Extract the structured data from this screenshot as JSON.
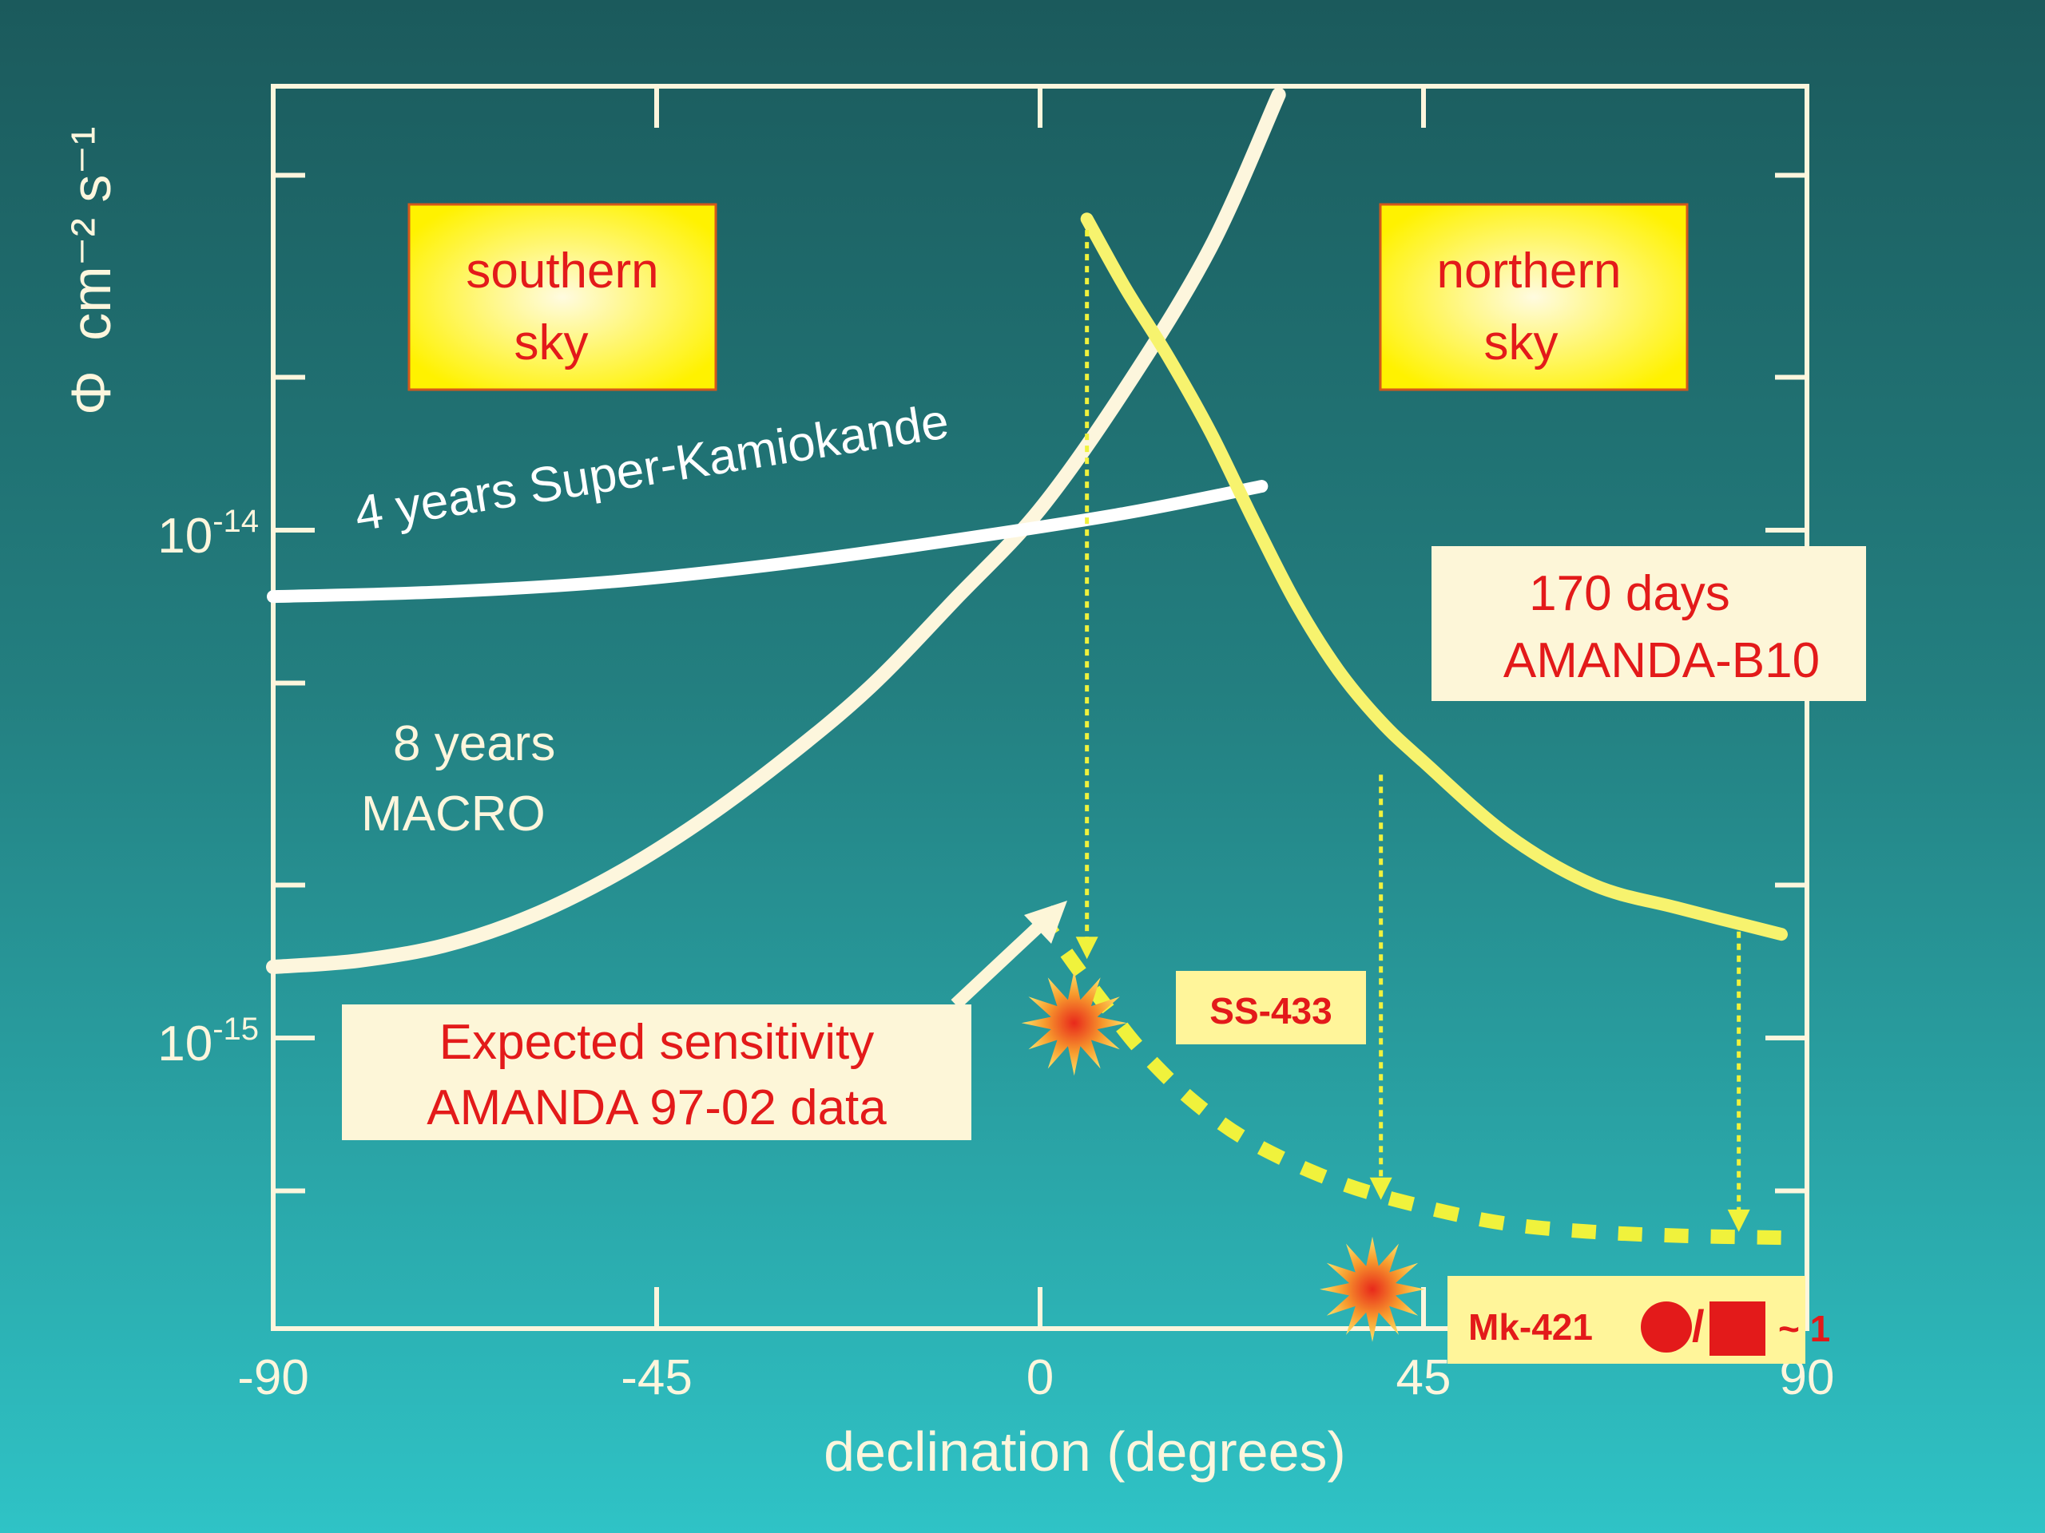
{
  "chart_data": {
    "type": "line",
    "xlabel": "declination (degrees)",
    "ylabel_symbol": "Φ",
    "ylabel_units": "cm⁻² s⁻¹",
    "scale": "log-y",
    "xlim": [
      -90,
      90
    ],
    "x_ticks": [
      {
        "value": -90,
        "label": "-90"
      },
      {
        "value": -45,
        "label": "-45"
      },
      {
        "value": 0,
        "label": "0"
      },
      {
        "value": 45,
        "label": "45"
      },
      {
        "value": 90,
        "label": "90"
      }
    ],
    "y_ticks": [
      {
        "value": 1e-14,
        "base": "10",
        "exp": "-14"
      },
      {
        "value": 1e-15,
        "base": "10",
        "exp": "-15"
      }
    ],
    "colors": {
      "macro": "#fdf6dd",
      "superk": "#ffffff",
      "amanda_b10": "#f7f36e",
      "expected": "#f0f23c",
      "arrow": "#f0f23c",
      "label_text": "#e31a1a",
      "panel_yellow": "#fff200",
      "panel_cream": "#fdf6d8"
    },
    "series": [
      {
        "name": "8 years MACRO",
        "points": [
          [
            -90,
            1.38e-15
          ],
          [
            -80,
            1.42e-15
          ],
          [
            -70,
            1.52e-15
          ],
          [
            -60,
            1.73e-15
          ],
          [
            -50,
            2.09e-15
          ],
          [
            -40,
            2.66e-15
          ],
          [
            -30,
            3.54e-15
          ],
          [
            -20,
            4.9e-15
          ],
          [
            -10,
            7.3e-15
          ],
          [
            0,
            1.1e-14
          ],
          [
            10,
            1.9e-14
          ],
          [
            20,
            3.6e-14
          ],
          [
            28,
            7.2e-14
          ]
        ]
      },
      {
        "name": "4 years Super-Kamiokande",
        "points": [
          [
            -90,
            7.4e-15
          ],
          [
            -70,
            7.56e-15
          ],
          [
            -50,
            7.92e-15
          ],
          [
            -30,
            8.6e-15
          ],
          [
            -10,
            9.57e-15
          ],
          [
            10,
            1.08e-14
          ],
          [
            26,
            1.22e-14
          ]
        ]
      },
      {
        "name": "170 days AMANDA-B10",
        "points": [
          [
            5.5,
            4.1e-14
          ],
          [
            10,
            3e-14
          ],
          [
            15,
            2.2e-14
          ],
          [
            20,
            1.56e-14
          ],
          [
            25,
            1.05e-14
          ],
          [
            30,
            7.2e-15
          ],
          [
            35,
            5.3e-15
          ],
          [
            40,
            4.2e-15
          ],
          [
            45,
            3.5e-15
          ],
          [
            55,
            2.5e-15
          ],
          [
            65,
            2e-15
          ],
          [
            75,
            1.8e-15
          ],
          [
            87,
            1.6e-15
          ]
        ]
      },
      {
        "name": "Expected sensitivity AMANDA 97-02 data",
        "points": [
          [
            0,
            1.75e-15
          ],
          [
            4,
            1.4e-15
          ],
          [
            8,
            1.14e-15
          ],
          [
            12,
            9.4e-16
          ],
          [
            18,
            7.5e-16
          ],
          [
            25,
            6.2e-16
          ],
          [
            35,
            5.2e-16
          ],
          [
            45,
            4.65e-16
          ],
          [
            55,
            4.3e-16
          ],
          [
            65,
            4.15e-16
          ],
          [
            75,
            4.08e-16
          ],
          [
            88,
            4.04e-16
          ]
        ]
      }
    ],
    "drop_arrows": [
      {
        "x": 5.5,
        "from": 3.9e-14,
        "to": 1.43e-15
      },
      {
        "x": 40,
        "from": 3.3e-15,
        "to": 4.8e-16
      },
      {
        "x": 82,
        "from": 1.62e-15,
        "to": 4.15e-16
      }
    ],
    "sources": [
      {
        "name": "SS-433",
        "x": 4,
        "y": 1.07e-15
      },
      {
        "name": "Mk-421",
        "x": 39,
        "y": 3.2e-16
      }
    ],
    "labels": {
      "southern_line1": "southern",
      "southern_line2": "sky",
      "northern_line1": "northern",
      "northern_line2": "sky",
      "superk": "4 years Super-Kamiokande",
      "macro_line1": "8 years",
      "macro_line2": "MACRO",
      "amanda_line1": "170 days",
      "amanda_line2": "AMANDA-B10",
      "expected_line1": "Expected sensitivity",
      "expected_line2": "AMANDA 97-02 data",
      "ss433": "SS-433",
      "mk421": "Mk-421",
      "mk421_slash": "/",
      "mk421_suffix": "~ 1"
    }
  }
}
